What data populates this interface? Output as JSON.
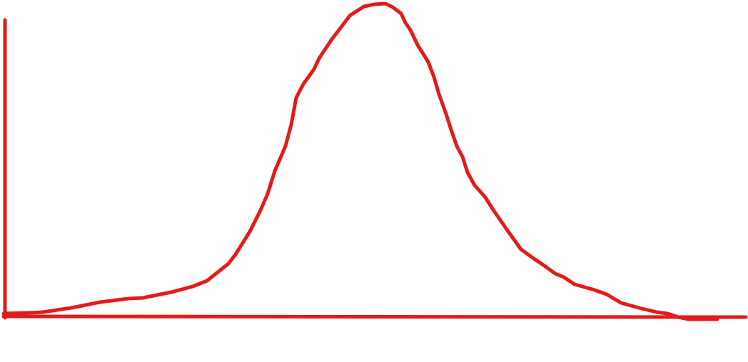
{
  "diagram": {
    "stroke_color": "#e31b1b"
  }
}
